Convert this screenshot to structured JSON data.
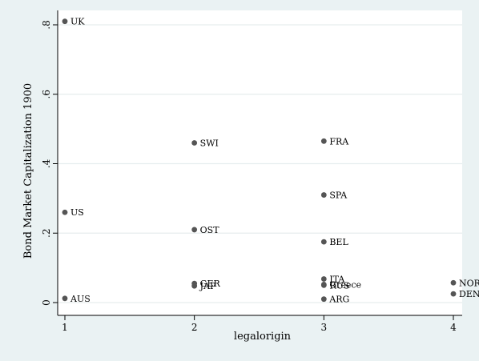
{
  "chart_data": {
    "type": "scatter",
    "title": "",
    "xlabel": "legalorigin",
    "ylabel": "Bond Market Capitalization 1900",
    "xlim": [
      1,
      4
    ],
    "ylim": [
      0,
      0.8
    ],
    "grid": true,
    "legend": "none",
    "x_ticks": [
      {
        "value": 1,
        "label": "1"
      },
      {
        "value": 2,
        "label": "2"
      },
      {
        "value": 3,
        "label": "3"
      },
      {
        "value": 4,
        "label": "4"
      }
    ],
    "y_ticks": [
      {
        "value": 0,
        "label": "0"
      },
      {
        "value": 0.2,
        "label": ".2"
      },
      {
        "value": 0.4,
        "label": ".4"
      },
      {
        "value": 0.6,
        "label": ".6"
      },
      {
        "value": 0.8,
        "label": ".8"
      }
    ],
    "points": [
      {
        "label": "UK",
        "x": 1,
        "y": 0.81
      },
      {
        "label": "US",
        "x": 1,
        "y": 0.26
      },
      {
        "label": "AUS",
        "x": 1,
        "y": 0.012
      },
      {
        "label": "SWI",
        "x": 2,
        "y": 0.46
      },
      {
        "label": "OST",
        "x": 2,
        "y": 0.21
      },
      {
        "label": "GER",
        "x": 2,
        "y": 0.055
      },
      {
        "label": "JAP",
        "x": 2,
        "y": 0.048
      },
      {
        "label": "FRA",
        "x": 3,
        "y": 0.465
      },
      {
        "label": "SPA",
        "x": 3,
        "y": 0.31
      },
      {
        "label": "BEL",
        "x": 3,
        "y": 0.175
      },
      {
        "label": "ITA",
        "x": 3,
        "y": 0.068
      },
      {
        "label": "Greece",
        "x": 3,
        "y": 0.052
      },
      {
        "label": "RUS",
        "x": 3,
        "y": 0.05
      },
      {
        "label": "ARG",
        "x": 3,
        "y": 0.01
      },
      {
        "label": "NOR",
        "x": 4,
        "y": 0.057
      },
      {
        "label": "DEN",
        "x": 4,
        "y": 0.025
      }
    ]
  },
  "colors": {
    "background": "#eaf2f3",
    "plot_area": "#ffffff",
    "marker": "#555555",
    "grid": "#e6edee",
    "axis": "#000000"
  }
}
